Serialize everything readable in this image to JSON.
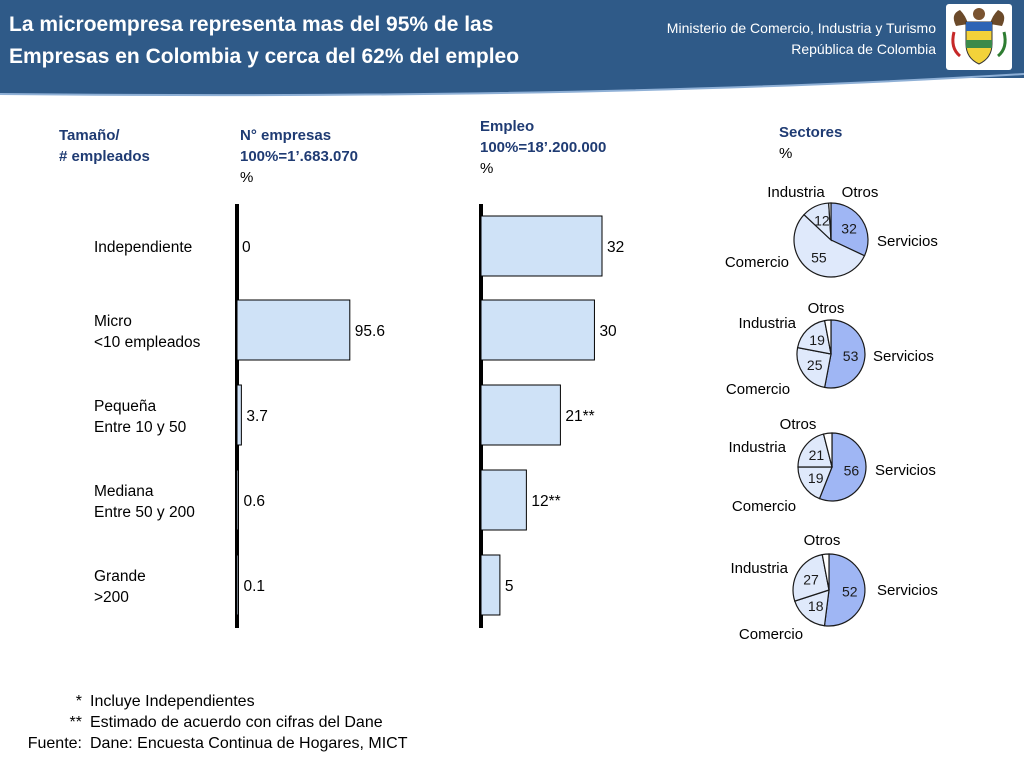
{
  "header": {
    "title_line1": "La microempresa representa mas del 95% de las",
    "title_line2": "Empresas en Colombia y cerca del 62% del empleo",
    "ministry": "Ministerio de Comercio, Industria y Turismo",
    "republic": "República de Colombia"
  },
  "columns": {
    "size_line1": "Tamaño/",
    "size_line2": "# empleados",
    "firms_line1": "N° empresas",
    "firms_line2": "100%=1’.683.070",
    "firms_line3": "%",
    "emp_line1": "Empleo",
    "emp_line2": "100%=18’.200.000",
    "emp_line3": "%",
    "sectors_line1": "Sectores",
    "sectors_line2": "%"
  },
  "categories": [
    {
      "line1": "Independiente",
      "line2": ""
    },
    {
      "line1": "Micro",
      "line2": "<10 empleados"
    },
    {
      "line1": "Pequeña",
      "line2": "Entre 10 y 50"
    },
    {
      "line1": "Mediana",
      "line2": "Entre 50 y 200"
    },
    {
      "line1": "Grande",
      "line2": ">200"
    }
  ],
  "chart_data": [
    {
      "type": "bar",
      "orientation": "horizontal",
      "title": "N° empresas 100%=1’.683.070 %",
      "categories": [
        "Independiente",
        "Micro <10 empleados",
        "Pequeña Entre 10 y 50",
        "Mediana Entre 50 y 200",
        "Grande >200"
      ],
      "values": [
        0,
        95.6,
        3.7,
        0.6,
        0.1
      ],
      "labels": [
        "0",
        "95.6",
        "3.7",
        "0.6",
        "0.1"
      ],
      "xlim": [
        0,
        100
      ],
      "color": "#cfe2f7"
    },
    {
      "type": "bar",
      "orientation": "horizontal",
      "title": "Empleo 100%=18’.200.000 %",
      "categories": [
        "Independiente",
        "Micro <10 empleados",
        "Pequeña Entre 10 y 50",
        "Mediana Entre 50 y 200",
        "Grande >200"
      ],
      "values": [
        32,
        30,
        21,
        12,
        5
      ],
      "labels": [
        "32",
        "30",
        "21**",
        "12**",
        "5"
      ],
      "xlim": [
        0,
        32
      ],
      "color": "#cfe2f7"
    },
    {
      "type": "pie",
      "title": "Sectores %",
      "row": "Micro <10 empleados",
      "slices": [
        {
          "name": "Servicios",
          "value": 32,
          "label": "32"
        },
        {
          "name": "Comercio",
          "value": 55,
          "label": "55"
        },
        {
          "name": "Industria",
          "value": 12,
          "label": "12"
        },
        {
          "name": "Otros",
          "value": 1,
          "label": ""
        }
      ]
    },
    {
      "type": "pie",
      "title": "Sectores %",
      "row": "Pequeña Entre 10 y 50",
      "slices": [
        {
          "name": "Servicios",
          "value": 53,
          "label": "53"
        },
        {
          "name": "Comercio",
          "value": 25,
          "label": "25"
        },
        {
          "name": "Industria",
          "value": 19,
          "label": "19"
        },
        {
          "name": "Otros",
          "value": 3,
          "label": ""
        }
      ]
    },
    {
      "type": "pie",
      "title": "Sectores %",
      "row": "Mediana Entre 50 y 200",
      "slices": [
        {
          "name": "Servicios",
          "value": 56,
          "label": "56"
        },
        {
          "name": "Comercio",
          "value": 19,
          "label": "19"
        },
        {
          "name": "Industria",
          "value": 21,
          "label": "21"
        },
        {
          "name": "Otros",
          "value": 4,
          "label": ""
        }
      ]
    },
    {
      "type": "pie",
      "title": "Sectores %",
      "row": "Grande >200",
      "slices": [
        {
          "name": "Servicios",
          "value": 52,
          "label": "52"
        },
        {
          "name": "Comercio",
          "value": 18,
          "label": "18"
        },
        {
          "name": "Industria",
          "value": 27,
          "label": "27"
        },
        {
          "name": "Otros",
          "value": 3,
          "label": ""
        }
      ]
    }
  ],
  "pie_colors": {
    "servicios": "#9fb6f4",
    "comercio": "#dfe9fb",
    "industria": "#dfe9fb",
    "otros": "#ffffff",
    "stroke": "#1a1a1a"
  },
  "notes": {
    "mark1": "*",
    "text1": "Incluye Independientes",
    "mark2": "**",
    "text2": "Estimado de acuerdo con cifras del Dane",
    "mark3": "Fuente:",
    "text3": "Dane: Encuesta Continua de Hogares, MICT"
  }
}
